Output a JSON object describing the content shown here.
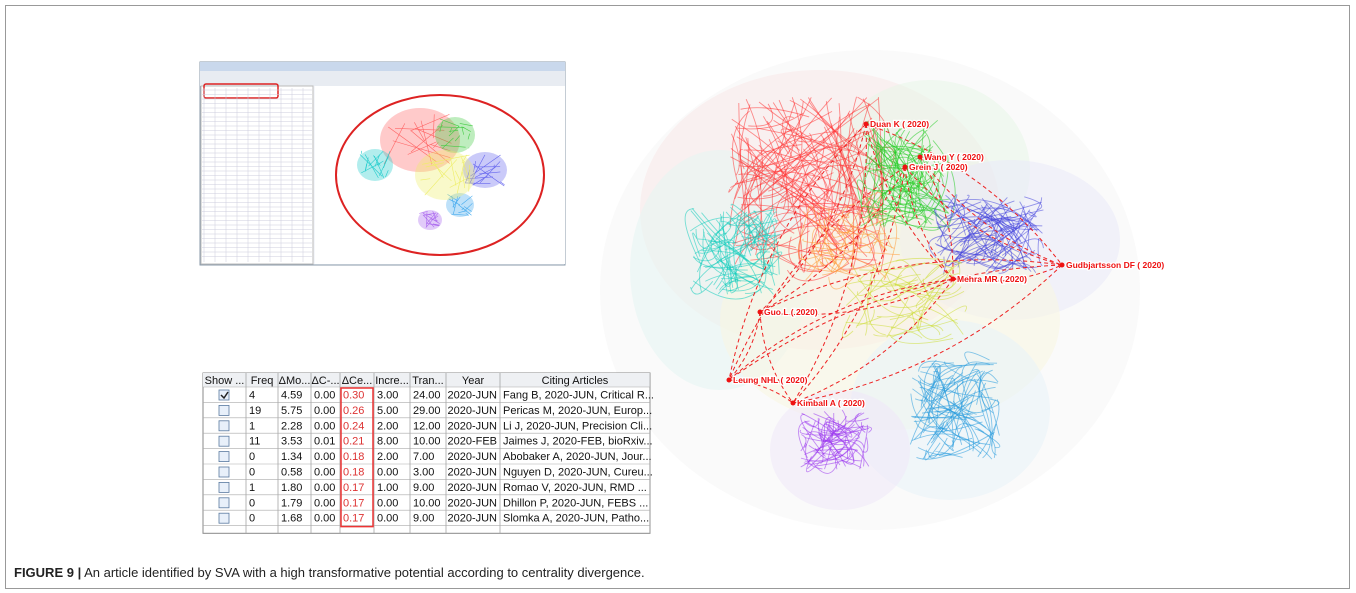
{
  "table": {
    "columns": [
      "Show ...",
      "Freq",
      "ΔMo...",
      "ΔC-...",
      "ΔCe...",
      "Incre...",
      "Tran...",
      "Year",
      "Citing Articles"
    ],
    "checked": [
      true,
      false,
      false,
      false,
      false,
      false,
      false,
      false,
      false
    ],
    "rows": [
      [
        "4",
        "4.59",
        "0.00",
        "0.30",
        "3.00",
        "24.00",
        "2020-JUN",
        "Fang B, 2020-JUN, Critical R..."
      ],
      [
        "19",
        "5.75",
        "0.00",
        "0.26",
        "5.00",
        "29.00",
        "2020-JUN",
        "Pericas M, 2020-JUN, Europ..."
      ],
      [
        "1",
        "2.28",
        "0.00",
        "0.24",
        "2.00",
        "12.00",
        "2020-JUN",
        "Li J, 2020-JUN, Precision Cli..."
      ],
      [
        "11",
        "3.53",
        "0.01",
        "0.21",
        "8.00",
        "10.00",
        "2020-FEB",
        "Jaimes J, 2020-FEB, bioRxiv..."
      ],
      [
        "0",
        "1.34",
        "0.00",
        "0.18",
        "2.00",
        "7.00",
        "2020-JUN",
        "Abobaker A, 2020-JUN, Jour..."
      ],
      [
        "0",
        "0.58",
        "0.00",
        "0.18",
        "0.00",
        "3.00",
        "2020-JUN",
        "Nguyen D, 2020-JUN, Cureu..."
      ],
      [
        "1",
        "1.80",
        "0.00",
        "0.17",
        "1.00",
        "9.00",
        "2020-JUN",
        "Romao V, 2020-JUN, RMD ..."
      ],
      [
        "0",
        "1.79",
        "0.00",
        "0.17",
        "0.00",
        "10.00",
        "2020-JUN",
        "Dhillon P, 2020-JUN, FEBS ..."
      ],
      [
        "0",
        "1.68",
        "0.00",
        "0.17",
        "0.00",
        "9.00",
        "2020-JUN",
        "Slomka A, 2020-JUN, Patho..."
      ]
    ]
  },
  "network": {
    "nodes": [
      {
        "label": "Duan K ( 2020)"
      },
      {
        "label": "Wang Y ( 2020)"
      },
      {
        "label": "Grein J ( 2020)"
      },
      {
        "label": "Gudbjartsson DF ( 2020)"
      },
      {
        "label": "Mehra MR ( 2020)"
      },
      {
        "label": "Guo L ( 2020)"
      },
      {
        "label": "Leung NHL ( 2020)"
      },
      {
        "label": "Kimball A ( 2020)"
      }
    ]
  },
  "caption": {
    "label": "FIGURE 9 |",
    "text": "An article identified by SVA with a high transformative potential according to centrality divergence."
  }
}
